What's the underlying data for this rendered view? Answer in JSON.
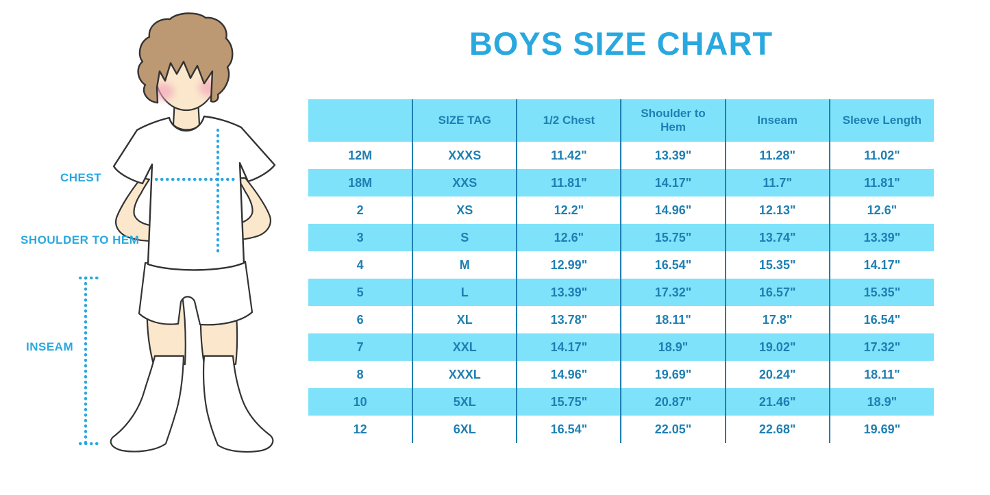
{
  "page_title": "BOYS SIZE CHART",
  "figure_labels": {
    "chest": "CHEST",
    "shoulder_to_hem": "SHOULDER TO HEM",
    "inseam": "INSEAM"
  },
  "chart_data": {
    "type": "table",
    "title": "BOYS SIZE CHART",
    "columns": [
      "",
      "SIZE TAG",
      "1/2 Chest",
      "Shoulder to Hem",
      "Inseam",
      "Sleeve Length"
    ],
    "rows": [
      [
        "12M",
        "XXXS",
        "11.42\"",
        "13.39\"",
        "11.28\"",
        "11.02\""
      ],
      [
        "18M",
        "XXS",
        "11.81\"",
        "14.17\"",
        "11.7\"",
        "11.81\""
      ],
      [
        "2",
        "XS",
        "12.2\"",
        "14.96\"",
        "12.13\"",
        "12.6\""
      ],
      [
        "3",
        "S",
        "12.6\"",
        "15.75\"",
        "13.74\"",
        "13.39\""
      ],
      [
        "4",
        "M",
        "12.99\"",
        "16.54\"",
        "15.35\"",
        "14.17\""
      ],
      [
        "5",
        "L",
        "13.39\"",
        "17.32\"",
        "16.57\"",
        "15.35\""
      ],
      [
        "6",
        "XL",
        "13.78\"",
        "18.11\"",
        "17.8\"",
        "16.54\""
      ],
      [
        "7",
        "XXL",
        "14.17\"",
        "18.9\"",
        "19.02\"",
        "17.32\""
      ],
      [
        "8",
        "XXXL",
        "14.96\"",
        "19.69\"",
        "20.24\"",
        "18.11\""
      ],
      [
        "10",
        "5XL",
        "15.75\"",
        "20.87\"",
        "21.46\"",
        "18.9\""
      ],
      [
        "12",
        "6XL",
        "16.54\"",
        "22.05\"",
        "22.68\"",
        "19.69\""
      ]
    ],
    "layout": {
      "row_striping": "white / light-blue alternating, header light-blue",
      "grid": "vertical column separators only"
    }
  },
  "colors": {
    "title_blue": "#29A8E0",
    "table_text_blue": "#1E7FB2",
    "stripe_light_blue": "#7DE2FA",
    "column_border_blue": "#1E7FB2",
    "measure_dots_blue": "#29A8E0",
    "hair_brown": "#BC9972",
    "skin": "#FBE8CC",
    "blush_pink": "#F2A3BA",
    "outline": "#333333"
  }
}
